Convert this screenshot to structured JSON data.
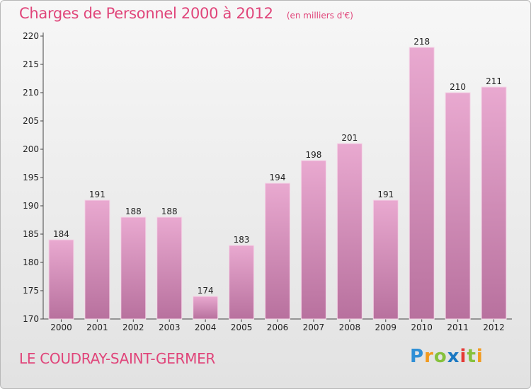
{
  "title": "Charges de Personnel 2000 à 2012",
  "subtitle": "(en milliers d'€)",
  "place_name": "LE COUDRAY-SAINT-GERMER",
  "brand": {
    "letters": [
      "P",
      "r",
      "o",
      "x",
      "i",
      "t",
      "i"
    ],
    "colors": [
      "#2f8fd6",
      "#f29a1e",
      "#86c13c",
      "#1a78c2",
      "#e53935",
      "#86c13c",
      "#f29a1e"
    ]
  },
  "colors": {
    "accent": "#e0457a",
    "bar_top": "#e9a9d0",
    "bar_bottom": "#b8719e"
  },
  "chart_data": {
    "type": "bar",
    "categories": [
      "2000",
      "2001",
      "2002",
      "2003",
      "2004",
      "2005",
      "2006",
      "2007",
      "2008",
      "2009",
      "2010",
      "2011",
      "2012"
    ],
    "values": [
      184,
      191,
      188,
      188,
      174,
      183,
      194,
      198,
      201,
      191,
      218,
      210,
      211
    ],
    "title": "Charges de Personnel 2000 à 2012",
    "subtitle": "(en milliers d'€)",
    "ylim": [
      170,
      220
    ],
    "yticks": [
      170,
      175,
      180,
      185,
      190,
      195,
      200,
      205,
      210,
      215,
      220
    ],
    "grid": false,
    "legend": "none"
  }
}
